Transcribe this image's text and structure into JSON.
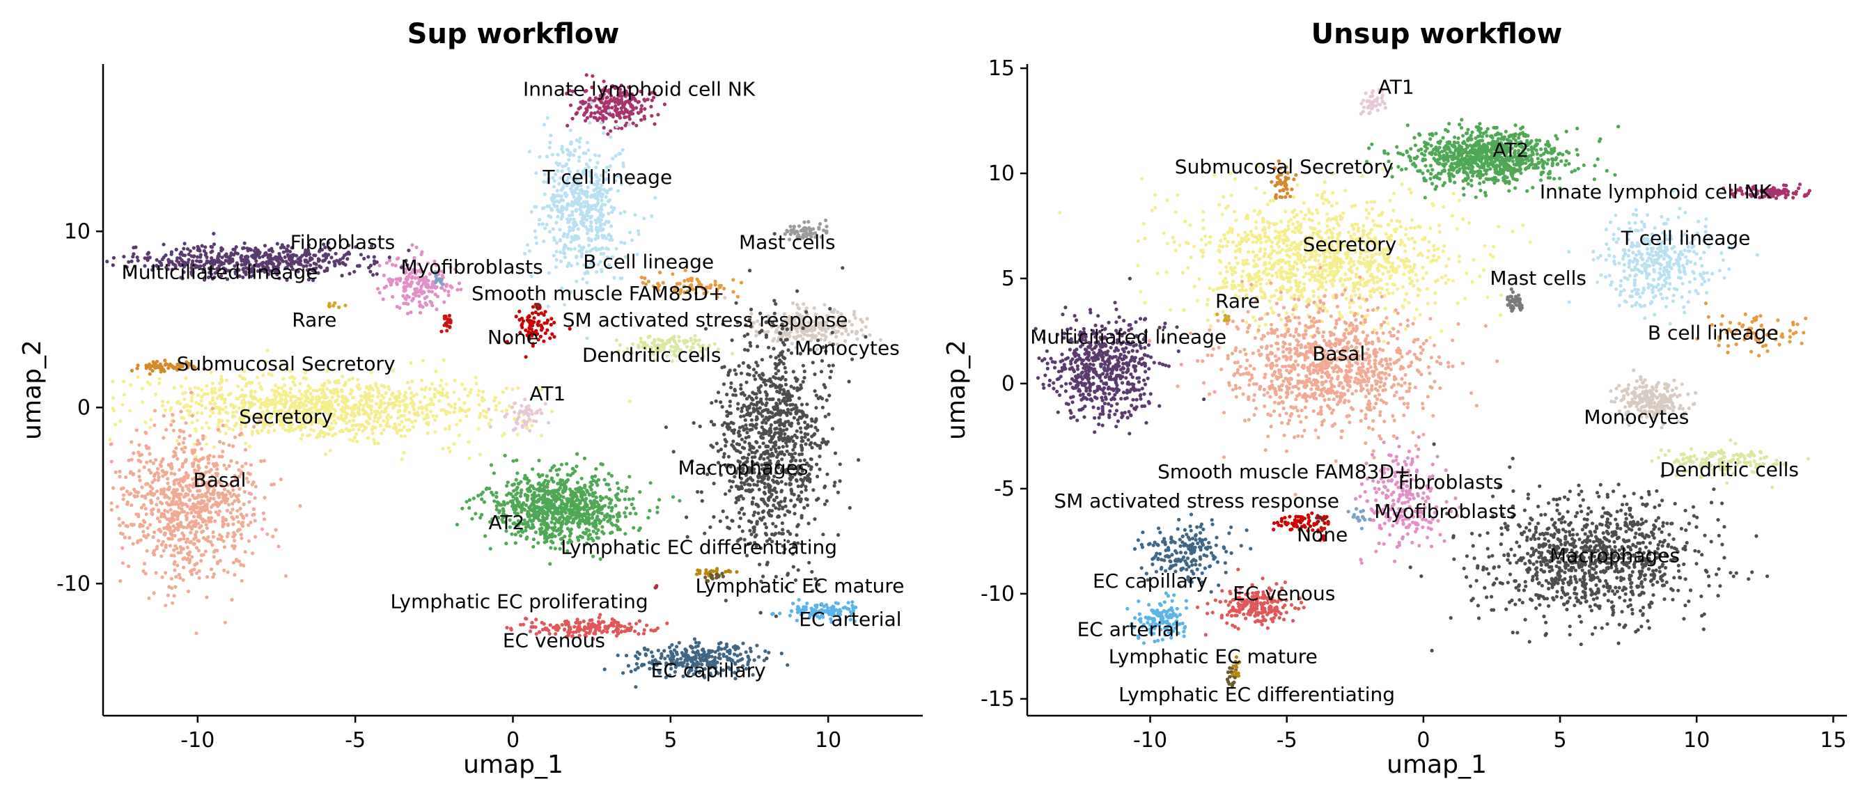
{
  "chart_data": [
    {
      "type": "scatter",
      "title": "Sup workflow",
      "xlabel": "umap_1",
      "ylabel": "umap_2",
      "xlim": [
        -13,
        13
      ],
      "ylim": [
        -17.5,
        19.5
      ],
      "xticks": [
        -10,
        -5,
        0,
        5,
        10
      ],
      "yticks": [
        -10,
        0,
        10
      ],
      "xtick_labels": [
        "-10",
        "-5",
        "0",
        "5",
        "10"
      ],
      "ytick_labels": [
        "-10",
        "0",
        "10"
      ],
      "legend": "none",
      "clusters": [
        {
          "name": "Innate lymphoid cell NK",
          "color": "#a8336e",
          "x": 3.2,
          "y": 17.1,
          "sx": 0.6,
          "sy": 0.6,
          "n": 220,
          "lx": 4.0,
          "ly": 17.7
        },
        {
          "name": "T cell lineage",
          "color": "#b9e1f2",
          "x": 2.2,
          "y": 11.5,
          "sx": 0.7,
          "sy": 2.0,
          "n": 520,
          "lx": 3.0,
          "ly": 12.7
        },
        {
          "name": "Mast cells",
          "color": "#9a9a9a",
          "x": 9.3,
          "y": 10.0,
          "sx": 0.35,
          "sy": 0.25,
          "n": 60,
          "lx": 8.7,
          "ly": 9.0
        },
        {
          "name": "B cell lineage",
          "color": "#e89a40",
          "x": 5.5,
          "y": 6.9,
          "sx": 0.7,
          "sy": 0.3,
          "n": 70,
          "lx": 4.3,
          "ly": 7.9
        },
        {
          "name": "Fibroblasts",
          "color": "#e38fc7",
          "x": -3.0,
          "y": 7.0,
          "sx": 0.55,
          "sy": 0.7,
          "n": 180,
          "lx": -5.4,
          "ly": 9.0
        },
        {
          "name": "Myofibroblasts",
          "color": "#7aa3c8",
          "x": -2.4,
          "y": 7.3,
          "sx": 0.1,
          "sy": 0.2,
          "n": 12,
          "lx": -1.3,
          "ly": 7.6
        },
        {
          "name": "Smooth muscle FAM83D+",
          "color": "#8b1d1d",
          "x": 0.8,
          "y": 5.7,
          "sx": 0.05,
          "sy": 0.08,
          "n": 8,
          "lx": 2.7,
          "ly": 6.1
        },
        {
          "name": "SM activated stress response",
          "color": "#cc0000",
          "x": 0.7,
          "y": 4.6,
          "sx": 0.3,
          "sy": 0.5,
          "n": 80,
          "lx": 6.1,
          "ly": 4.6
        },
        {
          "name": "None",
          "color": "#cc1111",
          "x": -2.1,
          "y": 4.8,
          "sx": 0.1,
          "sy": 0.3,
          "n": 20,
          "lx": 0.0,
          "ly": 3.6
        },
        {
          "name": "Dendritic cells",
          "color": "#d9e9a0",
          "x": 5.0,
          "y": 3.5,
          "sx": 0.7,
          "sy": 0.3,
          "n": 110,
          "lx": 4.4,
          "ly": 2.6
        },
        {
          "name": "Monocytes",
          "color": "#d8ccc2",
          "x": 9.4,
          "y": 4.6,
          "sx": 0.9,
          "sy": 0.5,
          "n": 230,
          "lx": 10.6,
          "ly": 3.0
        },
        {
          "name": "Macrophages",
          "color": "#4d4d4d",
          "x": 8.2,
          "y": -2.0,
          "sx": 0.9,
          "sy": 3.2,
          "n": 1000,
          "lx": 7.3,
          "ly": -3.8
        },
        {
          "name": "Multiciliated lineage",
          "color": "#5b3a6e",
          "x": -8.4,
          "y": 8.3,
          "sx": 1.9,
          "sy": 0.45,
          "n": 520,
          "lx": -9.3,
          "ly": 7.3
        },
        {
          "name": "Rare",
          "color": "#d4a52a",
          "x": -5.7,
          "y": 5.8,
          "sx": 0.15,
          "sy": 0.1,
          "n": 8,
          "lx": -6.3,
          "ly": 4.6
        },
        {
          "name": "Submucosal Secretory",
          "color": "#d4892a",
          "x": -11.0,
          "y": 2.3,
          "sx": 0.45,
          "sy": 0.15,
          "n": 60,
          "lx": -7.2,
          "ly": 2.1
        },
        {
          "name": "Secretory",
          "color": "#f5ee8e",
          "x": -6.0,
          "y": 0.0,
          "sx": 2.8,
          "sy": 0.9,
          "n": 1050,
          "lx": -7.2,
          "ly": -0.9
        },
        {
          "name": "AT1",
          "color": "#e6c8d7",
          "x": 0.3,
          "y": -0.5,
          "sx": 0.3,
          "sy": 0.4,
          "n": 50,
          "lx": 1.1,
          "ly": 0.4
        },
        {
          "name": "AT2",
          "color": "#4ea854",
          "x": 1.5,
          "y": -5.7,
          "sx": 1.1,
          "sy": 1.0,
          "n": 850,
          "lx": -0.2,
          "ly": -6.9
        },
        {
          "name": "Basal",
          "color": "#f3aa95",
          "x": -10.2,
          "y": -5.5,
          "sx": 1.1,
          "sy": 2.0,
          "n": 850,
          "lx": -9.3,
          "ly": -4.5
        },
        {
          "name": "Lymphatic EC differentiating",
          "color": "#b8860b",
          "x": 6.3,
          "y": -9.3,
          "sx": 0.3,
          "sy": 0.12,
          "n": 25,
          "lx": 5.9,
          "ly": -8.3
        },
        {
          "name": "Lymphatic EC mature",
          "color": "#6b5a2e",
          "x": 6.4,
          "y": -9.6,
          "sx": 0.2,
          "sy": 0.1,
          "n": 15,
          "lx": 9.1,
          "ly": -10.5
        },
        {
          "name": "Lymphatic EC proliferating",
          "color": "#a83244",
          "x": 4.5,
          "y": -10.2,
          "sx": 0.05,
          "sy": 0.05,
          "n": 4,
          "lx": 0.2,
          "ly": -11.4
        },
        {
          "name": "EC arterial",
          "color": "#5ab4e8",
          "x": 9.7,
          "y": -11.6,
          "sx": 0.6,
          "sy": 0.25,
          "n": 110,
          "lx": 10.7,
          "ly": -12.4
        },
        {
          "name": "EC venous",
          "color": "#e15759",
          "x": 2.5,
          "y": -12.5,
          "sx": 1.0,
          "sy": 0.25,
          "n": 170,
          "lx": 1.3,
          "ly": -13.6
        },
        {
          "name": "EC capillary",
          "color": "#3f6685",
          "x": 5.8,
          "y": -14.3,
          "sx": 1.0,
          "sy": 0.5,
          "n": 270,
          "lx": 6.2,
          "ly": -15.3
        }
      ]
    },
    {
      "type": "scatter",
      "title": "Unsup workflow",
      "xlabel": "umap_1",
      "ylabel": "umap_2",
      "xlim": [
        -14.5,
        15.5
      ],
      "ylim": [
        -15.8,
        15.2
      ],
      "xticks": [
        -10,
        -5,
        0,
        5,
        10,
        15
      ],
      "yticks": [
        -15,
        -10,
        -5,
        0,
        5,
        10,
        15
      ],
      "xtick_labels": [
        "-10",
        "-5",
        "0",
        "5",
        "10",
        "15"
      ],
      "ytick_labels": [
        "-15",
        "-10",
        "-5",
        "0",
        "5",
        "10",
        "15"
      ],
      "legend": "none",
      "clusters": [
        {
          "name": "AT1",
          "color": "#e6c8d7",
          "x": -1.8,
          "y": 13.3,
          "sx": 0.25,
          "sy": 0.3,
          "n": 40,
          "lx": -1.0,
          "ly": 13.8
        },
        {
          "name": "AT2",
          "color": "#4ea854",
          "x": 2.3,
          "y": 10.8,
          "sx": 1.5,
          "sy": 0.7,
          "n": 850,
          "lx": 3.2,
          "ly": 10.8
        },
        {
          "name": "Innate lymphoid cell NK",
          "color": "#a8336e",
          "x": 12.7,
          "y": 9.1,
          "sx": 0.7,
          "sy": 0.15,
          "n": 90,
          "lx": 8.5,
          "ly": 8.8
        },
        {
          "name": "Submucosal Secretory",
          "color": "#d4892a",
          "x": -5.2,
          "y": 9.6,
          "sx": 0.2,
          "sy": 0.4,
          "n": 40,
          "lx": -5.1,
          "ly": 10.0
        },
        {
          "name": "T cell lineage",
          "color": "#b9e1f2",
          "x": 8.5,
          "y": 5.7,
          "sx": 1.1,
          "sy": 1.1,
          "n": 360,
          "lx": 9.6,
          "ly": 6.6
        },
        {
          "name": "Secretory",
          "color": "#f5ee8e",
          "x": -3.8,
          "y": 5.9,
          "sx": 2.5,
          "sy": 1.4,
          "n": 1150,
          "lx": -2.7,
          "ly": 6.3
        },
        {
          "name": "Mast cells",
          "color": "#7a7a7a",
          "x": 3.3,
          "y": 3.9,
          "sx": 0.15,
          "sy": 0.25,
          "n": 45,
          "lx": 4.2,
          "ly": 4.7
        },
        {
          "name": "B cell lineage",
          "color": "#e89a40",
          "x": 12.2,
          "y": 2.4,
          "sx": 0.9,
          "sy": 0.5,
          "n": 70,
          "lx": 10.6,
          "ly": 2.1
        },
        {
          "name": "Rare",
          "color": "#d4a52a",
          "x": -7.3,
          "y": 3.1,
          "sx": 0.15,
          "sy": 0.15,
          "n": 8,
          "lx": -6.8,
          "ly": 3.6
        },
        {
          "name": "Multiciliated lineage",
          "color": "#5b3a6e",
          "x": -11.8,
          "y": 0.7,
          "sx": 1.0,
          "sy": 1.2,
          "n": 560,
          "lx": -10.8,
          "ly": 1.9
        },
        {
          "name": "Basal",
          "color": "#f3aa95",
          "x": -3.6,
          "y": 0.8,
          "sx": 1.8,
          "sy": 1.5,
          "n": 960,
          "lx": -3.1,
          "ly": 1.1
        },
        {
          "name": "Monocytes",
          "color": "#d8ccc2",
          "x": 8.3,
          "y": -0.8,
          "sx": 0.7,
          "sy": 0.45,
          "n": 220,
          "lx": 7.8,
          "ly": -1.9
        },
        {
          "name": "Dendritic cells",
          "color": "#d9e9a0",
          "x": 10.8,
          "y": -3.7,
          "sx": 1.1,
          "sy": 0.35,
          "n": 140,
          "lx": 11.2,
          "ly": -4.4
        },
        {
          "name": "Smooth muscle FAM83D+",
          "color": "#8b1d1d",
          "x": -3.8,
          "y": -6.4,
          "sx": 0.1,
          "sy": 0.1,
          "n": 10,
          "lx": -5.1,
          "ly": -4.5
        },
        {
          "name": "Fibroblasts",
          "color": "#e38fc7",
          "x": -0.7,
          "y": -5.6,
          "sx": 0.7,
          "sy": 1.2,
          "n": 220,
          "lx": 1.0,
          "ly": -5.0
        },
        {
          "name": "SM activated stress response",
          "color": "#cc0000",
          "x": -4.5,
          "y": -6.6,
          "sx": 0.5,
          "sy": 0.2,
          "n": 60,
          "lx": -8.3,
          "ly": -5.9
        },
        {
          "name": "Myofibroblasts",
          "color": "#7aa3c8",
          "x": -2.4,
          "y": -6.4,
          "sx": 0.2,
          "sy": 0.2,
          "n": 15,
          "lx": 0.8,
          "ly": -6.4
        },
        {
          "name": "None",
          "color": "#cc1111",
          "x": -3.6,
          "y": -7.1,
          "sx": 0.1,
          "sy": 0.2,
          "n": 10,
          "lx": -3.7,
          "ly": -7.5
        },
        {
          "name": "Macrophages",
          "color": "#4d4d4d",
          "x": 6.2,
          "y": -8.3,
          "sx": 2.0,
          "sy": 1.5,
          "n": 1000,
          "lx": 7.0,
          "ly": -8.5
        },
        {
          "name": "EC capillary",
          "color": "#3f6685",
          "x": -8.8,
          "y": -8.1,
          "sx": 0.8,
          "sy": 0.7,
          "n": 180,
          "lx": -10.0,
          "ly": -9.7
        },
        {
          "name": "EC venous",
          "color": "#e15759",
          "x": -6.2,
          "y": -10.6,
          "sx": 0.7,
          "sy": 0.5,
          "n": 200,
          "lx": -5.1,
          "ly": -10.3
        },
        {
          "name": "EC arterial",
          "color": "#5ab4e8",
          "x": -9.6,
          "y": -11.2,
          "sx": 0.5,
          "sy": 0.5,
          "n": 120,
          "lx": -10.8,
          "ly": -12.0
        },
        {
          "name": "Lymphatic EC mature",
          "color": "#6b5a2e",
          "x": -7.0,
          "y": -14.0,
          "sx": 0.1,
          "sy": 0.3,
          "n": 18,
          "lx": -7.7,
          "ly": -13.3
        },
        {
          "name": "Lymphatic EC differentiating",
          "color": "#b8860b",
          "x": -6.9,
          "y": -13.6,
          "sx": 0.1,
          "sy": 0.2,
          "n": 12,
          "lx": -6.1,
          "ly": -15.1
        }
      ]
    }
  ]
}
